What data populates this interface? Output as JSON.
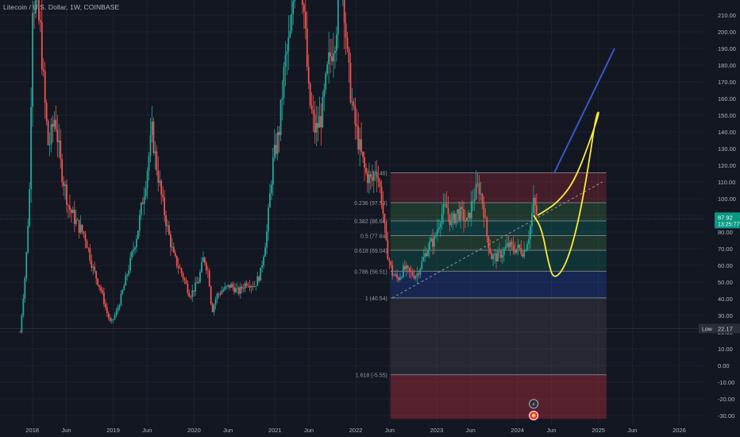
{
  "header": {
    "title": "Litecoin / U.S. Dollar, 1W, COINBASE"
  },
  "colors": {
    "background": "#131722",
    "up": "#26a69a",
    "down": "#ef5350",
    "grid": "#1e222d",
    "text": "#b2b5be",
    "fib_line": "#787b86",
    "trend_line": "#3858c6",
    "projection": "#ffeb3b"
  },
  "chart_data": {
    "type": "candlestick",
    "symbol": "Litecoin / U.S. Dollar",
    "interval": "1W",
    "exchange": "COINBASE",
    "x_ticks": [
      "2018",
      "Jun",
      "2019",
      "Jun",
      "2020",
      "Jun",
      "2021",
      "Jun",
      "2022",
      "Jun",
      "2023",
      "Jun",
      "2024",
      "Jun",
      "2025",
      "Jun",
      "2026"
    ],
    "y_ticks": [
      "210.00",
      "200.00",
      "190.00",
      "180.00",
      "170.00",
      "160.00",
      "150.00",
      "140.00",
      "130.00",
      "120.00",
      "110.00",
      "100.00",
      "90.00",
      "80.00",
      "70.00",
      "60.00",
      "50.00",
      "40.00",
      "30.00",
      "20.00",
      "10.00",
      "0.00",
      "-10.00",
      "-20.00",
      "-30.00"
    ],
    "ylim": [
      -33,
      215
    ],
    "last_price": "87.92",
    "countdown": "13:25:77",
    "low_label": "Low",
    "low_value": "22.17",
    "price_path": [
      [
        2017.85,
        20
      ],
      [
        2017.92,
        60
      ],
      [
        2017.97,
        110
      ],
      [
        2018.0,
        220
      ],
      [
        2018.05,
        215
      ],
      [
        2018.1,
        200
      ],
      [
        2018.15,
        160
      ],
      [
        2018.2,
        130
      ],
      [
        2018.28,
        150
      ],
      [
        2018.35,
        120
      ],
      [
        2018.45,
        95
      ],
      [
        2018.55,
        85
      ],
      [
        2018.65,
        78
      ],
      [
        2018.75,
        58
      ],
      [
        2018.85,
        45
      ],
      [
        2018.92,
        32
      ],
      [
        2018.97,
        25
      ],
      [
        2019.05,
        33
      ],
      [
        2019.12,
        45
      ],
      [
        2019.2,
        60
      ],
      [
        2019.3,
        80
      ],
      [
        2019.4,
        110
      ],
      [
        2019.48,
        140
      ],
      [
        2019.52,
        125
      ],
      [
        2019.6,
        100
      ],
      [
        2019.68,
        80
      ],
      [
        2019.75,
        65
      ],
      [
        2019.85,
        55
      ],
      [
        2019.95,
        42
      ],
      [
        2020.05,
        50
      ],
      [
        2020.12,
        65
      ],
      [
        2020.18,
        55
      ],
      [
        2020.22,
        32
      ],
      [
        2020.28,
        42
      ],
      [
        2020.35,
        45
      ],
      [
        2020.45,
        48
      ],
      [
        2020.55,
        44
      ],
      [
        2020.65,
        50
      ],
      [
        2020.75,
        48
      ],
      [
        2020.82,
        55
      ],
      [
        2020.9,
        80
      ],
      [
        2020.97,
        120
      ],
      [
        2021.05,
        140
      ],
      [
        2021.12,
        180
      ],
      [
        2021.2,
        200
      ],
      [
        2021.28,
        260
      ],
      [
        2021.35,
        220
      ],
      [
        2021.42,
        160
      ],
      [
        2021.5,
        140
      ],
      [
        2021.58,
        150
      ],
      [
        2021.66,
        180
      ],
      [
        2021.75,
        200
      ],
      [
        2021.83,
        240
      ],
      [
        2021.9,
        180
      ],
      [
        2021.97,
        150
      ],
      [
        2022.05,
        130
      ],
      [
        2022.12,
        115
      ],
      [
        2022.2,
        110
      ],
      [
        2022.25,
        120
      ],
      [
        2022.32,
        100
      ],
      [
        2022.38,
        70
      ],
      [
        2022.45,
        55
      ],
      [
        2022.52,
        52
      ],
      [
        2022.6,
        58
      ],
      [
        2022.68,
        55
      ],
      [
        2022.75,
        54
      ],
      [
        2022.82,
        62
      ],
      [
        2022.9,
        72
      ],
      [
        2022.97,
        75
      ],
      [
        2023.05,
        90
      ],
      [
        2023.12,
        95
      ],
      [
        2023.18,
        85
      ],
      [
        2023.25,
        92
      ],
      [
        2023.32,
        90
      ],
      [
        2023.38,
        85
      ],
      [
        2023.45,
        100
      ],
      [
        2023.52,
        108
      ],
      [
        2023.58,
        95
      ],
      [
        2023.62,
        78
      ],
      [
        2023.68,
        65
      ],
      [
        2023.75,
        65
      ],
      [
        2023.82,
        68
      ],
      [
        2023.88,
        72
      ],
      [
        2023.95,
        70
      ],
      [
        2024.02,
        70
      ],
      [
        2024.08,
        68
      ],
      [
        2024.15,
        80
      ],
      [
        2024.2,
        98
      ],
      [
        2024.25,
        88
      ]
    ],
    "fibonacci": {
      "levels": [
        {
          "label": "(115.46)",
          "price": 115.46
        },
        {
          "label": "0.236 (97.53)",
          "price": 97.53
        },
        {
          "label": "0.382 (86.64)",
          "price": 86.64
        },
        {
          "label": "0.5 (77.84)",
          "price": 77.84
        },
        {
          "label": "0.618 (69.04)",
          "price": 69.04
        },
        {
          "label": "0.786 (56.51)",
          "price": 56.51
        },
        {
          "label": "1 (40.54)",
          "price": 40.54
        },
        {
          "label": "1.618 (-5.55)",
          "price": -5.55
        }
      ],
      "start_date": 2022.43,
      "end_date": 2025.1
    },
    "trend_line": {
      "from": [
        2024.45,
        115
      ],
      "to": [
        2025.2,
        190
      ]
    },
    "diagonal": {
      "from": [
        2022.45,
        40.5
      ],
      "to": [
        2025.05,
        110
      ]
    },
    "projection": [
      [
        2024.2,
        90
      ],
      [
        2024.3,
        82
      ],
      [
        2024.38,
        62
      ],
      [
        2024.45,
        51
      ],
      [
        2024.6,
        60
      ],
      [
        2024.75,
        85
      ],
      [
        2024.88,
        120
      ],
      [
        2024.97,
        150
      ],
      [
        2025.02,
        153
      ],
      [
        2024.9,
        135
      ],
      [
        2024.7,
        110
      ],
      [
        2024.5,
        98
      ],
      [
        2024.35,
        93
      ],
      [
        2024.25,
        90
      ]
    ],
    "markers": [
      {
        "icon": "lightning-icon",
        "date": 2024.2,
        "price": -23
      },
      {
        "icon": "earnings-icon",
        "date": 2024.2,
        "price": -30
      }
    ]
  }
}
